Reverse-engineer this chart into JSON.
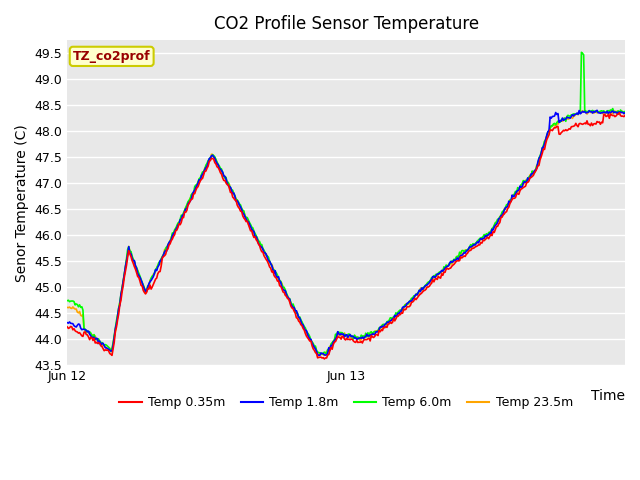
{
  "title": "CO2 Profile Sensor Temperature",
  "ylabel": "Senor Temperature (C)",
  "xlabel": "Time",
  "ylim": [
    43.5,
    49.75
  ],
  "yticks": [
    43.5,
    44.0,
    44.5,
    45.0,
    45.5,
    46.0,
    46.5,
    47.0,
    47.5,
    48.0,
    48.5,
    49.0,
    49.5
  ],
  "xtick_labels": [
    "Jun 12",
    "Jun 13"
  ],
  "bg_color": "#e8e8e8",
  "legend_label": "TZ_co2prof",
  "series_colors": [
    "red",
    "blue",
    "lime",
    "orange"
  ],
  "series_labels": [
    "Temp 0.35m",
    "Temp 1.8m",
    "Temp 6.0m",
    "Temp 23.5m"
  ],
  "series_linestyles": [
    "-",
    "-",
    "-",
    "-"
  ],
  "grid_color": "#ffffff",
  "fig_bg": "#ffffff",
  "title_fontsize": 12,
  "label_fontsize": 10,
  "tick_fontsize": 9,
  "legend_fontsize": 9,
  "linewidth": 1.2
}
